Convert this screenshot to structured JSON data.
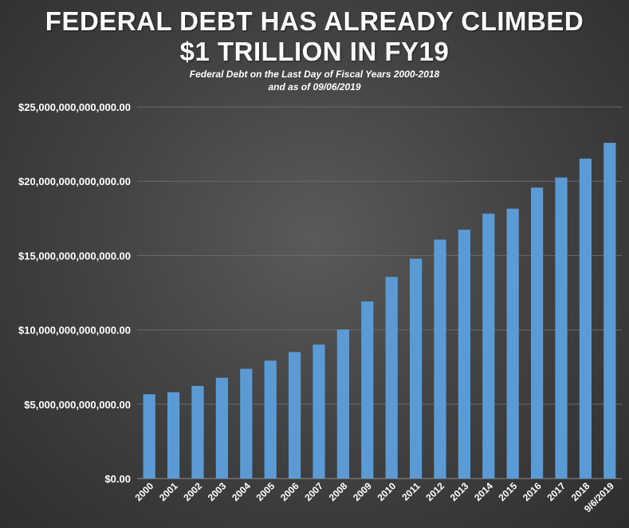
{
  "title_lines": [
    "FEDERAL DEBT HAS ALREADY CLIMBED",
    "$1 TRILLION IN FY19"
  ],
  "subtitle_lines": [
    "Federal Debt on the Last Day of Fiscal Years 2000-2018",
    "and as of 09/06/2019"
  ],
  "chart_data": {
    "type": "bar",
    "categories": [
      "2000",
      "2001",
      "2002",
      "2003",
      "2004",
      "2005",
      "2006",
      "2007",
      "2008",
      "2009",
      "2010",
      "2011",
      "2012",
      "2013",
      "2014",
      "2015",
      "2016",
      "2017",
      "2018",
      "9/6/2019"
    ],
    "values": [
      5670000000000,
      5810000000000,
      6230000000000,
      6780000000000,
      7380000000000,
      7930000000000,
      8510000000000,
      9010000000000,
      10030000000000,
      11910000000000,
      13560000000000,
      14790000000000,
      16070000000000,
      16740000000000,
      17820000000000,
      18150000000000,
      19570000000000,
      20250000000000,
      21520000000000,
      22580000000000
    ],
    "ylim": [
      0,
      25000000000000
    ],
    "yticks": [
      0,
      5000000000000,
      10000000000000,
      15000000000000,
      20000000000000,
      25000000000000
    ],
    "ytick_labels": [
      "$0.00",
      "$5,000,000,000,000.00",
      "$10,000,000,000,000.00",
      "$15,000,000,000,000.00",
      "$20,000,000,000,000.00",
      "$25,000,000,000,000.00"
    ],
    "grid": true,
    "legend": "none",
    "bar_color": "#5b9bd5",
    "grid_color": "#6a6a6a"
  }
}
